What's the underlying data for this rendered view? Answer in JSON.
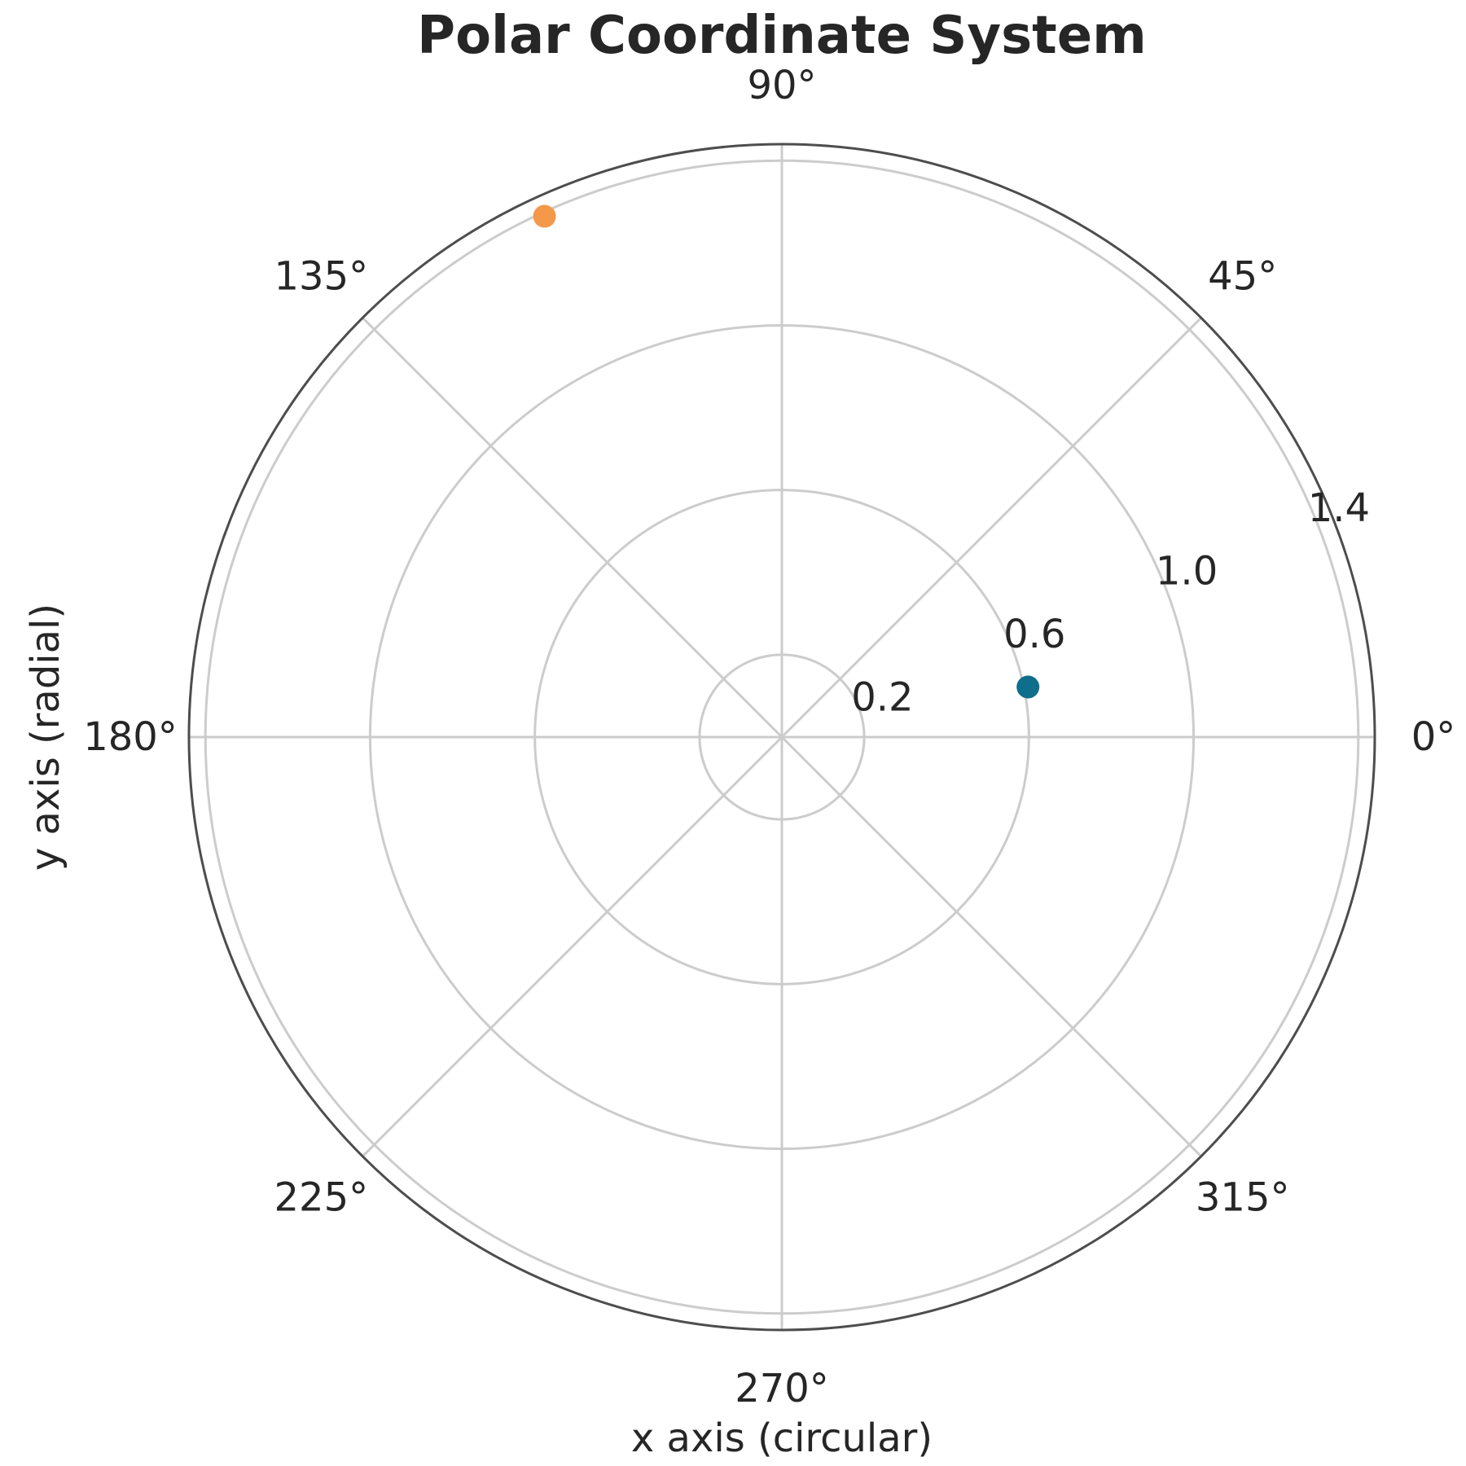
{
  "chart_data": {
    "type": "scatter",
    "projection": "polar",
    "title": "Polar Coordinate System",
    "xlabel": "x axis (circular)",
    "ylabel": "y axis (radial)",
    "angle_ticks_deg": [
      0,
      45,
      90,
      135,
      180,
      225,
      270,
      315
    ],
    "angle_tick_labels": [
      "0°",
      "45°",
      "90°",
      "135°",
      "180°",
      "225°",
      "270°",
      "315°"
    ],
    "radial_ticks": [
      0.2,
      0.6,
      1.0,
      1.4
    ],
    "radial_tick_labels": [
      "0.2",
      "0.6",
      "1.0",
      "1.4"
    ],
    "rlim": [
      0,
      1.44
    ],
    "grid": true,
    "points": [
      {
        "theta_deg": 11.5,
        "r": 0.61,
        "color": "#0e6e8c"
      },
      {
        "theta_deg": 114.5,
        "r": 1.39,
        "color": "#f4984a"
      }
    ]
  }
}
